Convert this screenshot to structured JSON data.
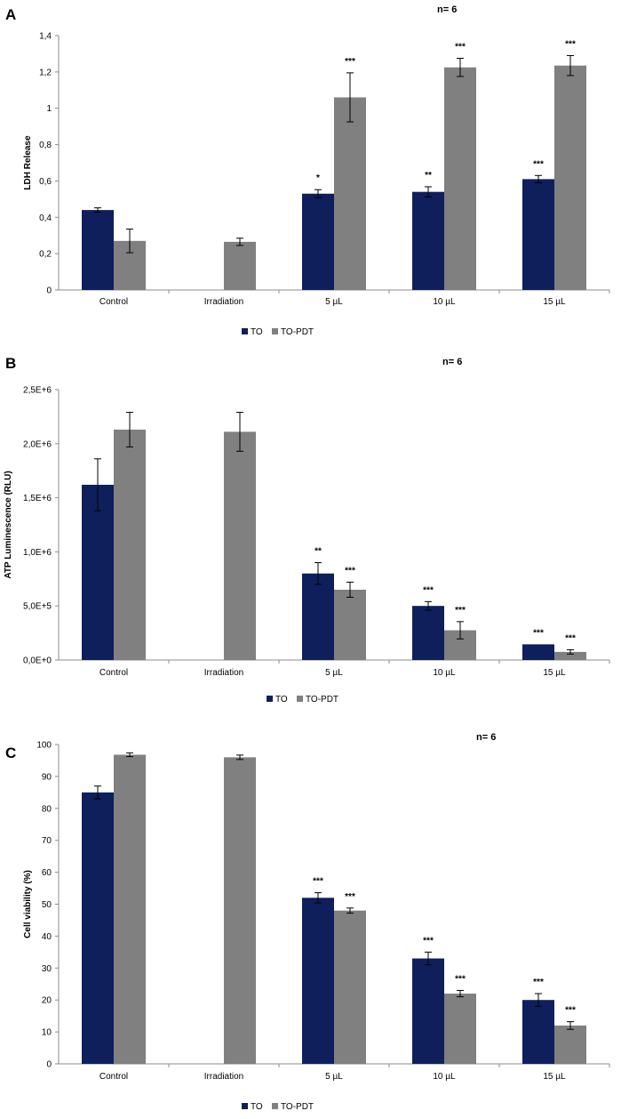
{
  "colors": {
    "TO": "#0f1f5c",
    "TO-PDT": "#808080",
    "axis": "#8c8c8c",
    "error": "#000000"
  },
  "chart_data": [
    {
      "panel": "A",
      "type": "bar",
      "note": "n= 6",
      "ylabel": "LDH Release",
      "ylim": [
        0,
        1.4
      ],
      "yticks": [
        0,
        0.2,
        0.4,
        0.6,
        0.8,
        1,
        1.2,
        1.4
      ],
      "ytick_labels": [
        "0",
        "0,2",
        "0,4",
        "0,6",
        "0,8",
        "1",
        "1,2",
        "1,4"
      ],
      "categories": [
        "Control",
        "Irradiation",
        "5 µL",
        "10 µL",
        "15 µL"
      ],
      "series": [
        {
          "name": "TO",
          "values": [
            0.44,
            null,
            0.53,
            0.54,
            0.61
          ],
          "errors": [
            0.012,
            null,
            0.022,
            0.028,
            0.02
          ],
          "significance": [
            "",
            "",
            "*",
            "**",
            "***"
          ]
        },
        {
          "name": "TO-PDT",
          "values": [
            0.27,
            0.265,
            1.06,
            1.225,
            1.235
          ],
          "errors": [
            0.065,
            0.02,
            0.135,
            0.05,
            0.055
          ],
          "significance": [
            "",
            "",
            "***",
            "***",
            "***"
          ]
        }
      ],
      "legend": [
        "TO",
        "TO-PDT"
      ]
    },
    {
      "panel": "B",
      "type": "bar",
      "note": "n= 6",
      "ylabel": "ATP Luminescence (RLU)",
      "ylim": [
        0,
        2500000
      ],
      "yticks": [
        0,
        500000,
        1000000,
        1500000,
        2000000,
        2500000
      ],
      "ytick_labels": [
        "0,0E+0",
        "5,0E+5",
        "1,0E+6",
        "1,5E+6",
        "2,0E+6",
        "2,5E+6"
      ],
      "categories": [
        "Control",
        "Irradiation",
        "5 µL",
        "10 µL",
        "15 µL"
      ],
      "series": [
        {
          "name": "TO",
          "values": [
            1620000,
            null,
            800000,
            500000,
            145000
          ],
          "errors": [
            240000,
            null,
            100000,
            40000,
            0
          ],
          "significance": [
            "",
            "",
            "**",
            "***",
            "***"
          ]
        },
        {
          "name": "TO-PDT",
          "values": [
            2130000,
            2110000,
            650000,
            275000,
            75000
          ],
          "errors": [
            160000,
            180000,
            70000,
            80000,
            20000
          ],
          "significance": [
            "",
            "",
            "***",
            "***",
            "***"
          ]
        }
      ],
      "legend": [
        "TO",
        "TO-PDT"
      ]
    },
    {
      "panel": "C",
      "type": "bar",
      "note": "n= 6",
      "ylabel": "Cell viability (%)",
      "ylim": [
        0,
        100
      ],
      "yticks": [
        0,
        10,
        20,
        30,
        40,
        50,
        60,
        70,
        80,
        90,
        100
      ],
      "ytick_labels": [
        "0",
        "10",
        "20",
        "30",
        "40",
        "50",
        "60",
        "70",
        "80",
        "90",
        "100"
      ],
      "categories": [
        "Control",
        "Irradiation",
        "5 µL",
        "10 µL",
        "15 µL"
      ],
      "series": [
        {
          "name": "TO",
          "values": [
            85,
            null,
            52,
            33,
            20
          ],
          "errors": [
            2,
            null,
            1.6,
            2,
            2
          ],
          "significance": [
            "",
            "",
            "***",
            "***",
            "***"
          ]
        },
        {
          "name": "TO-PDT",
          "values": [
            96.8,
            96,
            48,
            22,
            12
          ],
          "errors": [
            0.6,
            0.7,
            0.8,
            1,
            1.2
          ],
          "significance": [
            "",
            "",
            "***",
            "***",
            "***"
          ]
        }
      ],
      "legend": [
        "TO",
        "TO-PDT"
      ]
    }
  ]
}
